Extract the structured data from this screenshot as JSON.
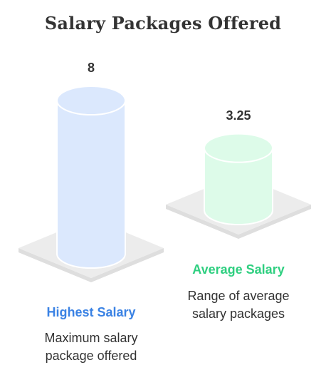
{
  "title": "Salary Packages Offered",
  "chart_data": {
    "type": "bar",
    "title": "Salary Packages Offered",
    "categories": [
      "Highest Salary",
      "Average Salary"
    ],
    "values": [
      8,
      3.25
    ],
    "value_labels": [
      "8",
      "3.25"
    ],
    "descriptions": [
      [
        "Maximum salary",
        "package offered"
      ],
      [
        "Range of average",
        "salary packages"
      ]
    ],
    "colors": {
      "highest_fill": "#dbe8fd",
      "average_fill": "#ddfbe9",
      "highest_text": "#3a82e4",
      "average_text": "#2fcf80",
      "platform": "#ececec"
    },
    "xlabel": "",
    "ylabel": ""
  }
}
